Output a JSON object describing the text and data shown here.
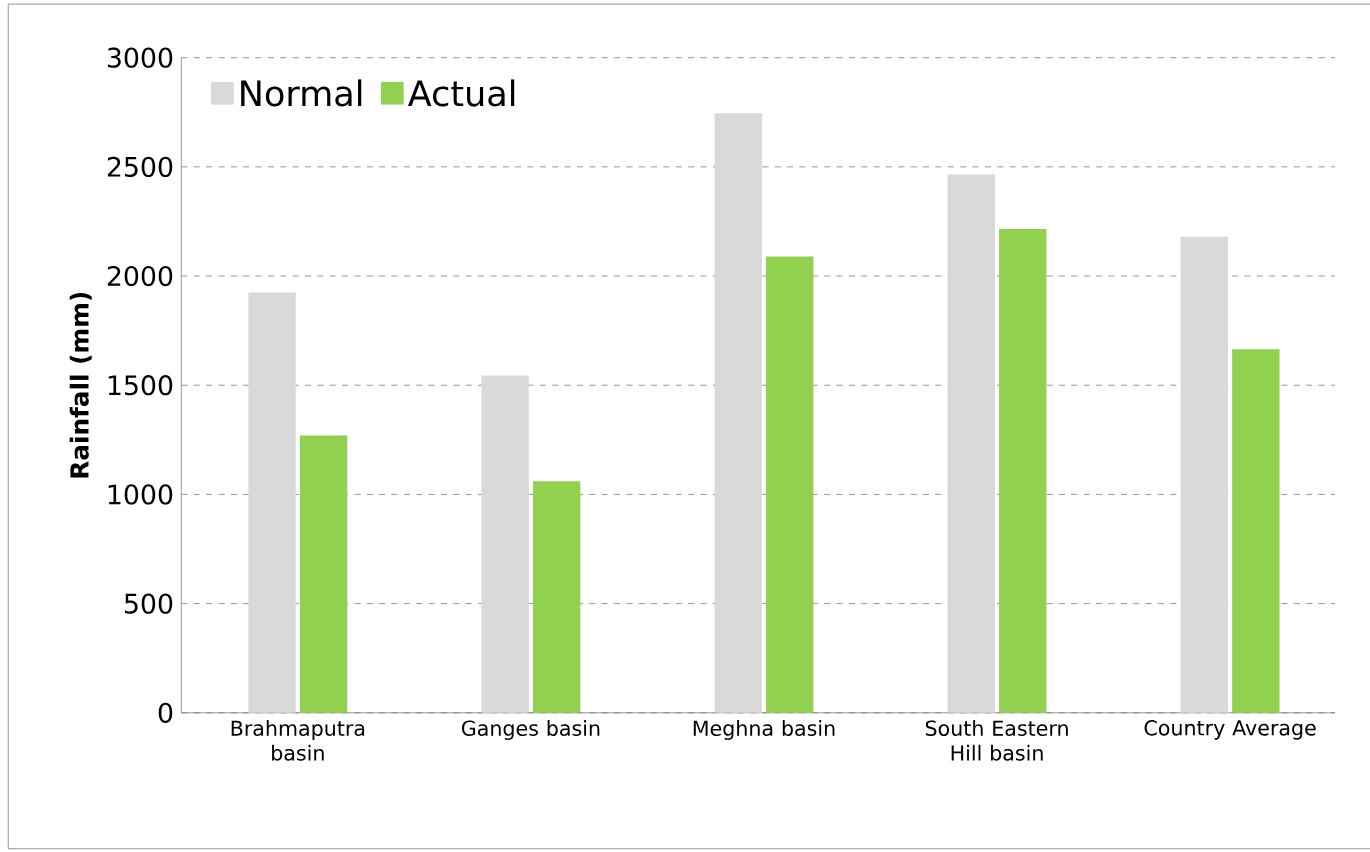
{
  "chart_data": {
    "type": "bar",
    "ylabel": "Rainfall (mm)",
    "categories": [
      "Brahmaputra basin",
      "Ganges basin",
      "Meghna basin",
      "South Eastern Hill basin",
      "Country Average"
    ],
    "series": [
      {
        "name": "Normal",
        "color": "#d9d9d9",
        "values": [
          1925,
          1545,
          2745,
          2465,
          2180
        ]
      },
      {
        "name": "Actual",
        "color": "#92d050",
        "values": [
          1270,
          1060,
          2090,
          2215,
          1665
        ]
      }
    ],
    "ylim": [
      0,
      3000
    ],
    "yticks": [
      0,
      500,
      1000,
      1500,
      2000,
      2500,
      3000
    ],
    "grid": "y",
    "legend": "top left"
  }
}
